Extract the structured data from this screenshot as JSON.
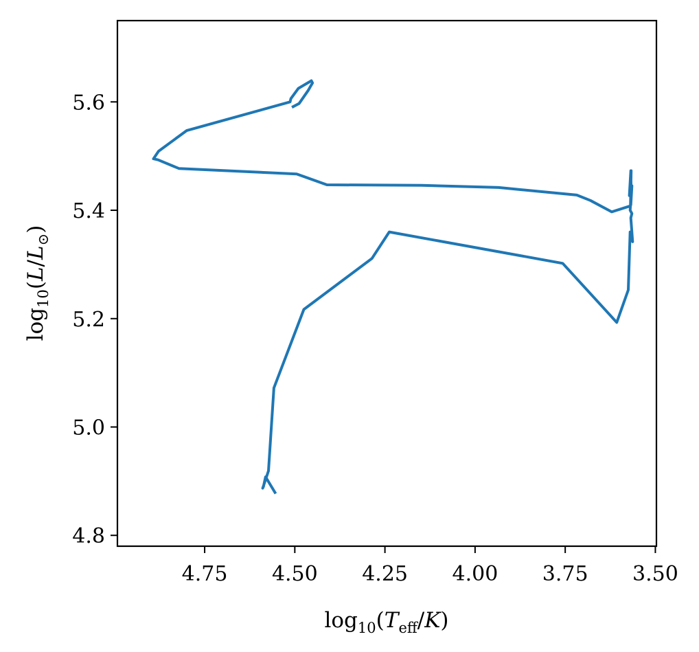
{
  "chart_data": {
    "type": "line",
    "title": "",
    "xlabel": {
      "prefix": "log",
      "sub": "10",
      "open": "(",
      "var": "T",
      "var_sub": "eff",
      "slash": "/",
      "unit": "K",
      "close": ")"
    },
    "ylabel": {
      "prefix": "log",
      "sub": "10",
      "open": "(",
      "var": "L",
      "slash": "/",
      "unit": "L",
      "unit_sub": "⊙",
      "close": ")"
    },
    "xlim": [
      4.992,
      3.497
    ],
    "ylim": [
      4.78,
      5.75
    ],
    "x_inverted": true,
    "grid": false,
    "x_ticks": [
      {
        "value": 4.75,
        "label": "4.75"
      },
      {
        "value": 4.5,
        "label": "4.50"
      },
      {
        "value": 4.25,
        "label": "4.25"
      },
      {
        "value": 4.0,
        "label": "4.00"
      },
      {
        "value": 3.75,
        "label": "3.75"
      },
      {
        "value": 3.5,
        "label": "3.50"
      }
    ],
    "y_ticks": [
      {
        "value": 4.8,
        "label": "4.8"
      },
      {
        "value": 5.0,
        "label": "5.0"
      },
      {
        "value": 5.2,
        "label": "5.2"
      },
      {
        "value": 5.4,
        "label": "5.4"
      },
      {
        "value": 5.6,
        "label": "5.6"
      }
    ],
    "series": [
      {
        "color": "#1f77b4",
        "x": [
          4.553,
          4.581,
          4.587,
          4.589,
          4.573,
          4.558,
          4.475,
          4.286,
          4.238,
          3.757,
          3.607,
          3.575,
          3.57,
          3.563,
          3.568,
          3.565,
          3.57,
          3.565,
          3.568,
          3.567,
          3.568,
          3.572,
          3.567,
          3.569,
          3.621,
          3.68,
          3.718,
          3.935,
          4.148,
          4.411,
          4.495,
          4.821,
          4.879,
          4.892,
          4.878,
          4.8,
          4.513,
          4.511,
          4.49,
          4.454,
          4.451,
          4.463,
          4.488,
          4.508
        ],
        "y": [
          4.877,
          4.908,
          4.89,
          4.887,
          4.919,
          5.072,
          5.217,
          5.311,
          5.36,
          5.302,
          5.193,
          5.253,
          5.36,
          5.342,
          5.386,
          5.394,
          5.4,
          5.445,
          5.41,
          5.433,
          5.473,
          5.427,
          5.473,
          5.408,
          5.397,
          5.418,
          5.428,
          5.442,
          5.446,
          5.447,
          5.467,
          5.477,
          5.493,
          5.495,
          5.509,
          5.547,
          5.6,
          5.606,
          5.625,
          5.639,
          5.635,
          5.621,
          5.597,
          5.59
        ]
      }
    ]
  }
}
